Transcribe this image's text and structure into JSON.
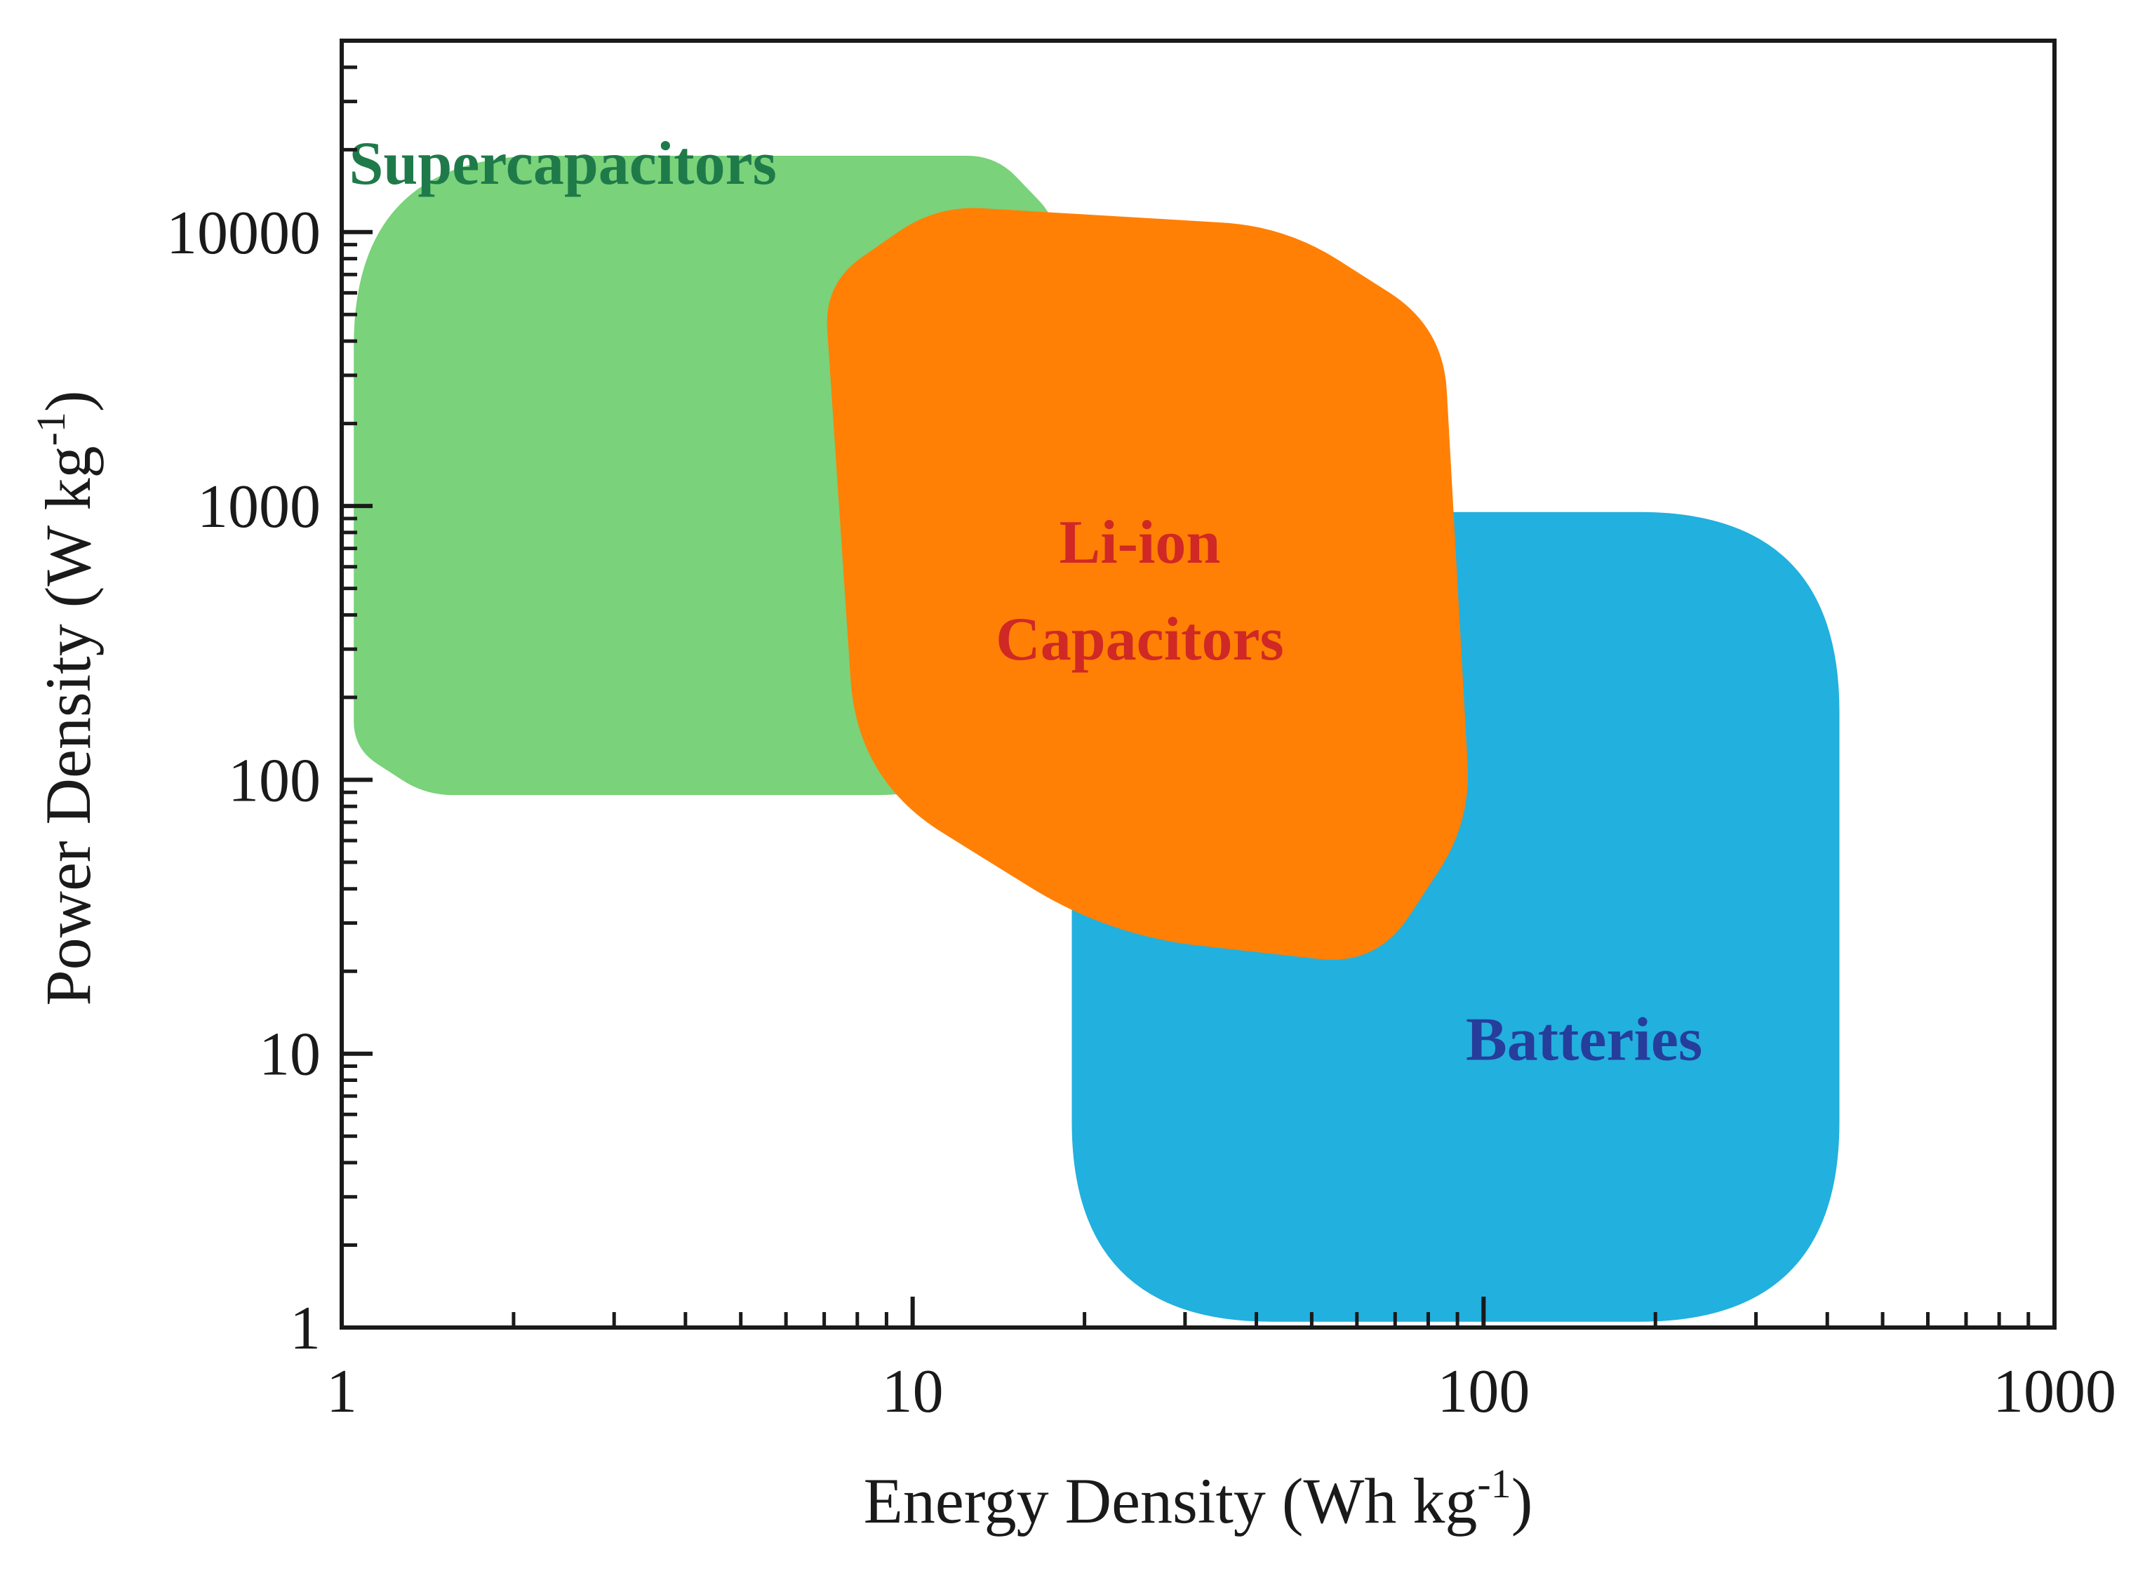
{
  "chart_data": {
    "type": "region",
    "title": "",
    "x_scale": "log",
    "y_scale": "log",
    "xlim": [
      1,
      1000
    ],
    "ylim": [
      1,
      50000
    ],
    "xlabel": {
      "text": "Energy Density (Wh kg",
      "sup": "-1",
      "close": ")"
    },
    "ylabel": {
      "text": "Power Density (W kg",
      "sup": "-1",
      "close": ")"
    },
    "x_ticks": [
      {
        "value": 1,
        "label": "1"
      },
      {
        "value": 10,
        "label": "10"
      },
      {
        "value": 100,
        "label": "100"
      },
      {
        "value": 1000,
        "label": "1000"
      }
    ],
    "y_ticks": [
      {
        "value": 1,
        "label": "1"
      },
      {
        "value": 10,
        "label": "10"
      },
      {
        "value": 100,
        "label": "100"
      },
      {
        "value": 1000,
        "label": "1000"
      },
      {
        "value": 10000,
        "label": "10000"
      }
    ],
    "regions": [
      {
        "name": "Supercapacitors",
        "label_lines": [
          "Supercapacitors"
        ],
        "color": "#7ad27a",
        "label_color": "#1f7a4a",
        "label_anchor": [
          1.03,
          15000
        ],
        "label_align": "start",
        "polygon": [
          [
            1.05,
            19000
          ],
          [
            14,
            19000
          ],
          [
            18,
            11000
          ],
          [
            18,
            88
          ],
          [
            1.4,
            88
          ],
          [
            1.05,
            130
          ]
        ],
        "corner_radius": 0.16
      },
      {
        "name": "Batteries",
        "label_lines": [
          "Batteries"
        ],
        "color": "#22b0de",
        "label_color": "#263d9c",
        "label_anchor": [
          150,
          9.5
        ],
        "label_align": "middle",
        "polygon": [
          [
            19,
            950
          ],
          [
            420,
            950
          ],
          [
            420,
            1.05
          ],
          [
            19,
            1.05
          ]
        ],
        "corner_radius": 0.13
      },
      {
        "name": "Li-ion Capacitors",
        "label_lines": [
          "Li-ion",
          "Capacitors"
        ],
        "color": "#ff8005",
        "label_color": "#d02825",
        "label_anchor": [
          25,
          620
        ],
        "label_align": "middle",
        "polygon": [
          [
            7,
            6500
          ],
          [
            11,
            12500
          ],
          [
            45,
            10500
          ],
          [
            85,
            4500
          ],
          [
            95,
            70
          ],
          [
            65,
            21
          ],
          [
            22,
            27
          ],
          [
            8,
            100
          ]
        ],
        "corner_radius": 0.17
      }
    ]
  }
}
